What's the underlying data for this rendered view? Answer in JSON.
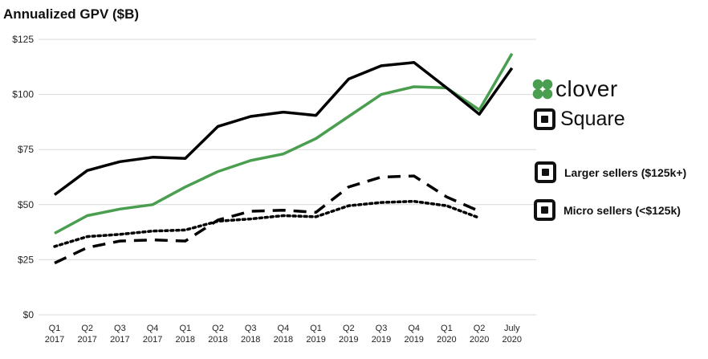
{
  "chart_data": {
    "type": "line",
    "title": "Annualized GPV ($B)",
    "ylim": [
      0,
      125
    ],
    "yticks": [
      0,
      25,
      50,
      75,
      100,
      125
    ],
    "ytick_labels": [
      "$0",
      "$25",
      "$50",
      "$75",
      "$100",
      "$125"
    ],
    "categories": [
      [
        "Q1",
        "2017"
      ],
      [
        "Q2",
        "2017"
      ],
      [
        "Q3",
        "2017"
      ],
      [
        "Q4",
        "2017"
      ],
      [
        "Q1",
        "2018"
      ],
      [
        "Q2",
        "2018"
      ],
      [
        "Q3",
        "2018"
      ],
      [
        "Q4",
        "2018"
      ],
      [
        "Q1",
        "2019"
      ],
      [
        "Q2",
        "2019"
      ],
      [
        "Q3",
        "2019"
      ],
      [
        "Q4",
        "2019"
      ],
      [
        "Q1",
        "2020"
      ],
      [
        "Q2",
        "2020"
      ],
      [
        "July",
        "2020"
      ]
    ],
    "grid": true,
    "legend_position": "right",
    "series": [
      {
        "name": "clover",
        "style": "solid",
        "color": "#4a9e4f",
        "values": [
          37,
          45,
          48,
          50,
          58,
          65,
          70,
          73,
          80,
          90,
          100,
          103.5,
          103,
          93,
          118.5
        ]
      },
      {
        "name": "Square",
        "style": "solid",
        "color": "#000000",
        "values": [
          54.5,
          65.5,
          69.5,
          71.5,
          71,
          85.5,
          90,
          92,
          90.5,
          107,
          113,
          114.5,
          103,
          91,
          112
        ]
      },
      {
        "name": "Larger sellers ($125k+)",
        "style": "dashed",
        "color": "#000000",
        "values": [
          23.5,
          30.5,
          33.5,
          34,
          33.5,
          43,
          47,
          47.5,
          46.5,
          58,
          62.5,
          63,
          53.5,
          47,
          null
        ]
      },
      {
        "name": "Micro sellers (<$125k)",
        "style": "dotted",
        "color": "#000000",
        "values": [
          31,
          35.5,
          36.5,
          38,
          38.5,
          42.5,
          43.5,
          45,
          44.5,
          49.5,
          51,
          51.5,
          49.5,
          44,
          null
        ]
      }
    ]
  },
  "legend": {
    "clover": "clover",
    "square": "Square",
    "larger": "Larger sellers ($125k+)",
    "micro": "Micro sellers (<$125k)"
  },
  "colors": {
    "clover_green": "#4a9e4f",
    "line_black": "#000000",
    "grid": "#d9d9d9"
  },
  "icons": {
    "clover": "clover-leaf-icon",
    "square": "square-logo-icon"
  }
}
